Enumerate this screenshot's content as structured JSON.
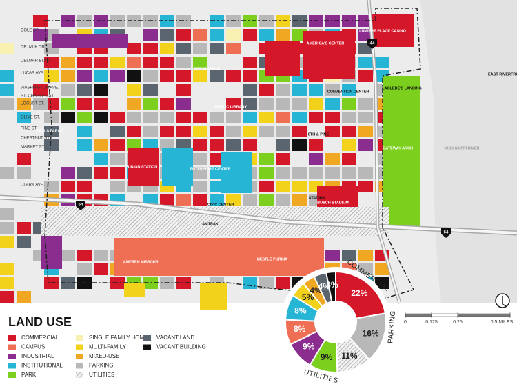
{
  "legend": {
    "title": "LAND USE",
    "items": [
      {
        "label": "COMMERCIAL",
        "color": "#d5172a"
      },
      {
        "label": "CAMPUS",
        "color": "#ef6f55"
      },
      {
        "label": "INDUSTRIAL",
        "color": "#8b2c8f"
      },
      {
        "label": "INSTITUTIONAL",
        "color": "#27b5d6"
      },
      {
        "label": "PARK",
        "color": "#7ccf1c"
      },
      {
        "label": "SINGLE FAMILY HOME",
        "color": "#f7f0b0"
      },
      {
        "label": "MULTI-FAMILY",
        "color": "#f2d21b"
      },
      {
        "label": "MIXED-USE",
        "color": "#f0a823"
      },
      {
        "label": "PARKING",
        "color": "#b8b8b8"
      },
      {
        "label": "UTILITIES",
        "color": "hatch"
      },
      {
        "label": "VACANT LAND",
        "color": "#5a6570"
      },
      {
        "label": "VACANT BUILDING",
        "color": "#111111"
      }
    ]
  },
  "chart_data": {
    "type": "pie",
    "values": [
      22,
      16,
      11,
      9,
      9,
      8,
      8,
      5,
      4,
      4,
      3
    ],
    "value_labels": [
      "22%",
      "16%",
      "11%",
      "9%",
      "9%",
      "8%",
      "8%",
      "5%",
      "4%",
      "4%",
      "3%"
    ],
    "colors": [
      "#d5172a",
      "#b8b8b8",
      "hatch",
      "#7ccf1c",
      "#8b2c8f",
      "#ef6f55",
      "#27b5d6",
      "#f2d21b",
      "#f0a823",
      "#5a6570",
      "#111111"
    ]
  },
  "map": {
    "streets": [
      "COLE ST.",
      "DR. MLK DR.",
      "DELMAR BLVD.",
      "LUCAS AVE.",
      "WASHINGTON AVE.",
      "ST. CHARLES ST.",
      "LOCUST ST.",
      "OLIVE ST.",
      "PINE ST.",
      "CHESTNUT ST.",
      "MARKET ST.",
      "CLARK AVE."
    ],
    "places": [
      "AMERICA'S CENTER",
      "LUMIERE PLACE CASINO",
      "EAST RIVERFRONT",
      "LACLEDE'S LANDING",
      "CITY MUSEUM",
      "CONVENTION CENTER",
      "PUBLIC LIBRARY",
      "8TH & PINE",
      "WELLS FARGO",
      "GATEWAY ARCH",
      "MISSISSIPPI RIVER",
      "UNION STATION",
      "ENTERPRISE CENTER",
      "STADIUM",
      "BUSCH STADIUM",
      "CIVIC CENTER",
      "AMTRAK",
      "AMEREN MISSOURI",
      "NESTLÉ PURINA"
    ],
    "highways": [
      "64",
      "64",
      "44"
    ]
  },
  "scale_bar": {
    "ticks": [
      0,
      0.125,
      0.25,
      {
        "value": 0.5,
        "label": "0.5 MILES"
      }
    ]
  }
}
